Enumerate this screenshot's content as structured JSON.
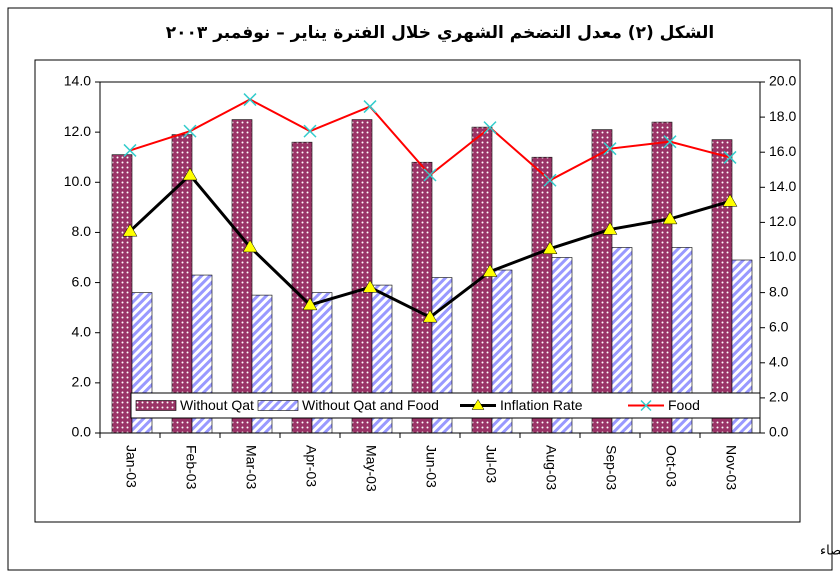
{
  "chart_data": {
    "type": "bar",
    "title": "الشكل (٢) معدل التضخم الشهري خلال الفترة يناير – نوفمبر ٢٠٠٣",
    "source": "المصدر: الجهاز المركزي للإحصاء",
    "categories": [
      "Jan-03",
      "Feb-03",
      "Mar-03",
      "Apr-03",
      "May-03",
      "Jun-03",
      "Jul-03",
      "Aug-03",
      "Sep-03",
      "Oct-03",
      "Nov-03"
    ],
    "series": [
      {
        "name": "Without Qat",
        "type": "bar",
        "color": "#993366",
        "values": [
          11.1,
          11.9,
          12.5,
          11.6,
          12.5,
          10.8,
          12.2,
          11.0,
          12.1,
          12.4,
          11.7
        ]
      },
      {
        "name": "Without Qat and Food",
        "type": "bar",
        "color": "#9999ff",
        "values": [
          5.6,
          6.3,
          5.5,
          5.6,
          5.9,
          6.2,
          6.5,
          7.0,
          7.4,
          7.4,
          6.9
        ]
      },
      {
        "name": "Inflation Rate",
        "type": "line",
        "axis": "y2",
        "color": "#000000",
        "marker_color": "#ffff00",
        "values": [
          11.5,
          14.7,
          10.6,
          7.3,
          8.3,
          6.6,
          9.2,
          10.5,
          11.6,
          12.2,
          13.2
        ]
      },
      {
        "name": "Food",
        "type": "line",
        "axis": "y2",
        "color": "#ff0000",
        "marker_color": "#33cccc",
        "values": [
          16.1,
          17.2,
          19.0,
          17.2,
          18.6,
          14.7,
          17.4,
          14.4,
          16.2,
          16.6,
          15.7
        ]
      }
    ],
    "ylim": [
      0,
      14
    ],
    "yticks": [
      {
        "value": 0,
        "label": "0.0"
      },
      {
        "value": 2,
        "label": "2.0"
      },
      {
        "value": 4,
        "label": "4.0"
      },
      {
        "value": 6,
        "label": "6.0"
      },
      {
        "value": 8,
        "label": "8.0"
      },
      {
        "value": 10,
        "label": "10.0"
      },
      {
        "value": 12,
        "label": "12.0"
      },
      {
        "value": 14,
        "label": "14.0"
      }
    ],
    "y2lim": [
      0,
      20
    ],
    "y2ticks": [
      {
        "value": 0,
        "label": "0.0"
      },
      {
        "value": 2,
        "label": "2.0"
      },
      {
        "value": 4,
        "label": "4.0"
      },
      {
        "value": 6,
        "label": "6.0"
      },
      {
        "value": 8,
        "label": "8.0"
      },
      {
        "value": 10,
        "label": "10.0"
      },
      {
        "value": 12,
        "label": "12.0"
      },
      {
        "value": 14,
        "label": "14.0"
      },
      {
        "value": 16,
        "label": "16.0"
      },
      {
        "value": 18,
        "label": "18.0"
      },
      {
        "value": 20,
        "label": "20.0"
      }
    ],
    "grid": false
  }
}
